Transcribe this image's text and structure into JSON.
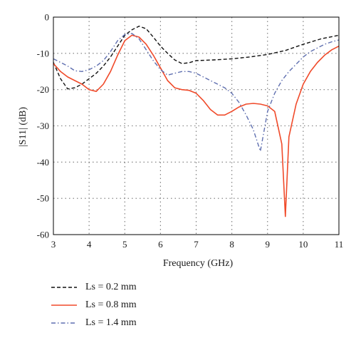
{
  "chart_data": {
    "type": "line",
    "xlabel": "Frequency (GHz)",
    "ylabel": "|S11| (dB)",
    "xlim": [
      3,
      11
    ],
    "ylim": [
      -60,
      0
    ],
    "xticks": [
      3,
      4,
      5,
      6,
      7,
      8,
      9,
      10,
      11
    ],
    "yticks": [
      0,
      -10,
      -20,
      -30,
      -40,
      -50,
      -60
    ],
    "grid": true,
    "legend_position": "bottom-left",
    "series": [
      {
        "name": "Ls = 0.2 mm",
        "color": "#111111",
        "style": "dashed",
        "x": [
          3.0,
          3.2,
          3.4,
          3.6,
          3.8,
          4.0,
          4.2,
          4.4,
          4.6,
          4.8,
          5.0,
          5.2,
          5.4,
          5.6,
          5.8,
          6.0,
          6.2,
          6.4,
          6.6,
          6.8,
          7.0,
          7.5,
          8.0,
          8.5,
          9.0,
          9.5,
          10.0,
          10.5,
          11.0
        ],
        "y": [
          -12.5,
          -17.0,
          -19.8,
          -19.5,
          -18.5,
          -17.0,
          -15.5,
          -13.5,
          -11.0,
          -8.0,
          -5.0,
          -3.5,
          -2.5,
          -3.2,
          -5.5,
          -8.0,
          -10.0,
          -11.8,
          -12.8,
          -12.6,
          -12.0,
          -11.8,
          -11.5,
          -11.0,
          -10.3,
          -9.2,
          -7.5,
          -6.0,
          -5.0
        ]
      },
      {
        "name": "Ls = 0.8 mm",
        "color": "#f04a2a",
        "style": "solid",
        "x": [
          3.0,
          3.2,
          3.4,
          3.6,
          3.8,
          4.0,
          4.2,
          4.4,
          4.6,
          4.8,
          5.0,
          5.2,
          5.4,
          5.6,
          5.8,
          6.0,
          6.2,
          6.4,
          6.6,
          6.8,
          7.0,
          7.2,
          7.4,
          7.6,
          7.8,
          8.0,
          8.2,
          8.4,
          8.6,
          8.8,
          9.0,
          9.2,
          9.4,
          9.5,
          9.6,
          9.8,
          10.0,
          10.2,
          10.4,
          10.6,
          10.8,
          11.0
        ],
        "y": [
          -12.8,
          -15.0,
          -16.5,
          -17.5,
          -18.5,
          -20.0,
          -20.5,
          -18.5,
          -15.0,
          -10.5,
          -6.5,
          -5.0,
          -5.5,
          -7.5,
          -10.5,
          -14.0,
          -17.5,
          -19.5,
          -20.0,
          -20.2,
          -21.0,
          -23.0,
          -25.5,
          -27.0,
          -27.0,
          -26.0,
          -24.8,
          -24.0,
          -23.8,
          -24.0,
          -24.5,
          -26.0,
          -35.0,
          -55.0,
          -33.0,
          -24.0,
          -18.5,
          -15.0,
          -12.5,
          -10.5,
          -9.0,
          -8.0
        ]
      },
      {
        "name": "Ls = 1.4 mm",
        "color": "#5f6fb0",
        "style": "dashdot",
        "x": [
          3.0,
          3.2,
          3.4,
          3.6,
          3.8,
          4.0,
          4.2,
          4.4,
          4.6,
          4.8,
          5.0,
          5.2,
          5.4,
          5.6,
          5.8,
          6.0,
          6.2,
          6.4,
          6.6,
          6.8,
          7.0,
          7.2,
          7.4,
          7.6,
          7.8,
          8.0,
          8.2,
          8.4,
          8.6,
          8.8,
          9.0,
          9.2,
          9.4,
          9.6,
          9.8,
          10.0,
          10.2,
          10.4,
          10.6,
          10.8,
          11.0
        ],
        "y": [
          -11.5,
          -12.5,
          -13.5,
          -14.8,
          -15.0,
          -14.5,
          -13.5,
          -12.0,
          -9.5,
          -6.5,
          -4.8,
          -4.5,
          -6.0,
          -9.0,
          -12.0,
          -14.5,
          -16.0,
          -15.5,
          -15.0,
          -15.0,
          -15.5,
          -16.5,
          -17.5,
          -18.5,
          -19.5,
          -21.0,
          -23.5,
          -27.0,
          -31.0,
          -37.0,
          -26.0,
          -21.0,
          -17.5,
          -15.0,
          -13.0,
          -11.0,
          -9.5,
          -8.5,
          -7.5,
          -6.8,
          -6.3
        ]
      }
    ]
  }
}
